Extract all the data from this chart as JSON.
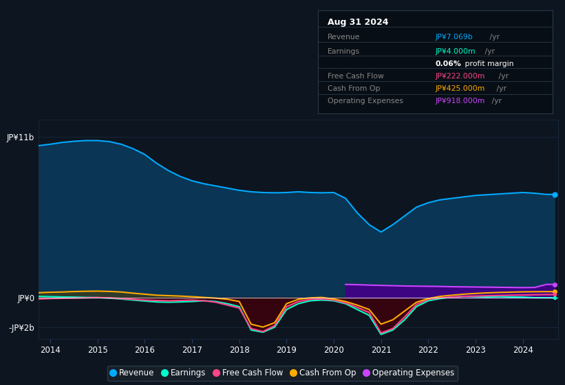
{
  "bg_color": "#0d1520",
  "plot_bg_color": "#0d1520",
  "grid_color": "#1a2e45",
  "zero_line_color": "#ffffff",
  "tooltip_date": "Aug 31 2024",
  "tooltip_revenue_label": "Revenue",
  "tooltip_revenue_value": "JP¥7.069b",
  "tooltip_revenue_color": "#00aaff",
  "tooltip_earnings_label": "Earnings",
  "tooltip_earnings_value": "JP¥4.000m",
  "tooltip_earnings_color": "#00ffcc",
  "tooltip_profit_margin": "0.06%",
  "tooltip_fcf_label": "Free Cash Flow",
  "tooltip_fcf_value": "JP¥222.000m",
  "tooltip_fcf_color": "#ff4488",
  "tooltip_cashop_label": "Cash From Op",
  "tooltip_cashop_value": "JP¥425.000m",
  "tooltip_cashop_color": "#ffaa00",
  "tooltip_opex_label": "Operating Expenses",
  "tooltip_opex_value": "JP¥918.000m",
  "tooltip_opex_color": "#cc44ff",
  "ytick_labels": [
    "JP¥11b",
    "JP¥0",
    "-JP¥2b"
  ],
  "ytick_values": [
    11000000000,
    0,
    -2000000000
  ],
  "xtick_labels": [
    "2014",
    "2015",
    "2016",
    "2017",
    "2018",
    "2019",
    "2020",
    "2021",
    "2022",
    "2023",
    "2024"
  ],
  "ymin": -2800000000,
  "ymax": 12200000000,
  "years": [
    2013.75,
    2014.0,
    2014.25,
    2014.5,
    2014.75,
    2015.0,
    2015.25,
    2015.5,
    2015.75,
    2016.0,
    2016.25,
    2016.5,
    2016.75,
    2017.0,
    2017.25,
    2017.5,
    2017.75,
    2018.0,
    2018.25,
    2018.5,
    2018.75,
    2019.0,
    2019.25,
    2019.5,
    2019.75,
    2020.0,
    2020.25,
    2020.5,
    2020.75,
    2021.0,
    2021.25,
    2021.5,
    2021.75,
    2022.0,
    2022.25,
    2022.5,
    2022.75,
    2023.0,
    2023.25,
    2023.5,
    2023.75,
    2024.0,
    2024.25,
    2024.5,
    2024.67
  ],
  "revenue": [
    10400000000,
    10500000000,
    10620000000,
    10700000000,
    10750000000,
    10750000000,
    10680000000,
    10500000000,
    10200000000,
    9800000000,
    9200000000,
    8700000000,
    8300000000,
    8000000000,
    7800000000,
    7650000000,
    7500000000,
    7350000000,
    7250000000,
    7200000000,
    7180000000,
    7200000000,
    7250000000,
    7200000000,
    7180000000,
    7200000000,
    6800000000,
    5800000000,
    5000000000,
    4500000000,
    5000000000,
    5600000000,
    6200000000,
    6500000000,
    6700000000,
    6800000000,
    6900000000,
    7000000000,
    7050000000,
    7100000000,
    7150000000,
    7200000000,
    7150000000,
    7069000000,
    7069000000
  ],
  "earnings": [
    100000000,
    80000000,
    60000000,
    50000000,
    30000000,
    20000000,
    -20000000,
    -80000000,
    -150000000,
    -220000000,
    -280000000,
    -300000000,
    -280000000,
    -250000000,
    -200000000,
    -250000000,
    -400000000,
    -600000000,
    -2200000000,
    -2350000000,
    -2000000000,
    -800000000,
    -400000000,
    -200000000,
    -150000000,
    -200000000,
    -400000000,
    -800000000,
    -1200000000,
    -2500000000,
    -2200000000,
    -1500000000,
    -600000000,
    -200000000,
    -50000000,
    50000000,
    100000000,
    80000000,
    60000000,
    80000000,
    60000000,
    50000000,
    10000000,
    4000000,
    4000000
  ],
  "free_cash_flow": [
    -80000000,
    -50000000,
    -30000000,
    -20000000,
    0,
    20000000,
    0,
    -50000000,
    -100000000,
    -150000000,
    -180000000,
    -200000000,
    -180000000,
    -150000000,
    -200000000,
    -300000000,
    -500000000,
    -700000000,
    -2100000000,
    -2300000000,
    -1900000000,
    -600000000,
    -250000000,
    -100000000,
    -80000000,
    -150000000,
    -350000000,
    -650000000,
    -1000000000,
    -2400000000,
    -2100000000,
    -1300000000,
    -450000000,
    -100000000,
    0,
    50000000,
    100000000,
    120000000,
    140000000,
    160000000,
    180000000,
    190000000,
    210000000,
    222000000,
    222000000
  ],
  "cash_from_op": [
    350000000,
    380000000,
    400000000,
    430000000,
    450000000,
    460000000,
    440000000,
    400000000,
    320000000,
    250000000,
    180000000,
    150000000,
    120000000,
    80000000,
    30000000,
    -20000000,
    -100000000,
    -250000000,
    -1800000000,
    -2000000000,
    -1700000000,
    -400000000,
    -100000000,
    0,
    30000000,
    -80000000,
    -250000000,
    -500000000,
    -800000000,
    -1800000000,
    -1500000000,
    -900000000,
    -300000000,
    -50000000,
    100000000,
    180000000,
    250000000,
    300000000,
    340000000,
    370000000,
    390000000,
    410000000,
    420000000,
    425000000,
    425000000
  ],
  "operating_expenses": [
    0,
    0,
    0,
    0,
    0,
    0,
    0,
    0,
    0,
    0,
    0,
    0,
    0,
    0,
    0,
    0,
    0,
    0,
    0,
    0,
    0,
    0,
    0,
    0,
    0,
    0,
    918000000,
    900000000,
    870000000,
    850000000,
    830000000,
    810000000,
    800000000,
    790000000,
    780000000,
    760000000,
    750000000,
    740000000,
    730000000,
    720000000,
    710000000,
    700000000,
    710000000,
    918000000,
    918000000
  ],
  "revenue_line_color": "#00aaff",
  "revenue_fill_color": "#0a3555",
  "earnings_line_color": "#00ffcc",
  "earnings_neg_fill_color": "#6b1515",
  "fcf_line_color": "#ff4488",
  "fcf_neg_fill_color": "#350010",
  "cashop_line_color": "#ffaa00",
  "opex_line_color": "#cc44ff",
  "opex_fill_color": "#440088",
  "legend_items": [
    {
      "label": "Revenue",
      "color": "#00aaff"
    },
    {
      "label": "Earnings",
      "color": "#00ffcc"
    },
    {
      "label": "Free Cash Flow",
      "color": "#ff4488"
    },
    {
      "label": "Cash From Op",
      "color": "#ffaa00"
    },
    {
      "label": "Operating Expenses",
      "color": "#cc44ff"
    }
  ]
}
